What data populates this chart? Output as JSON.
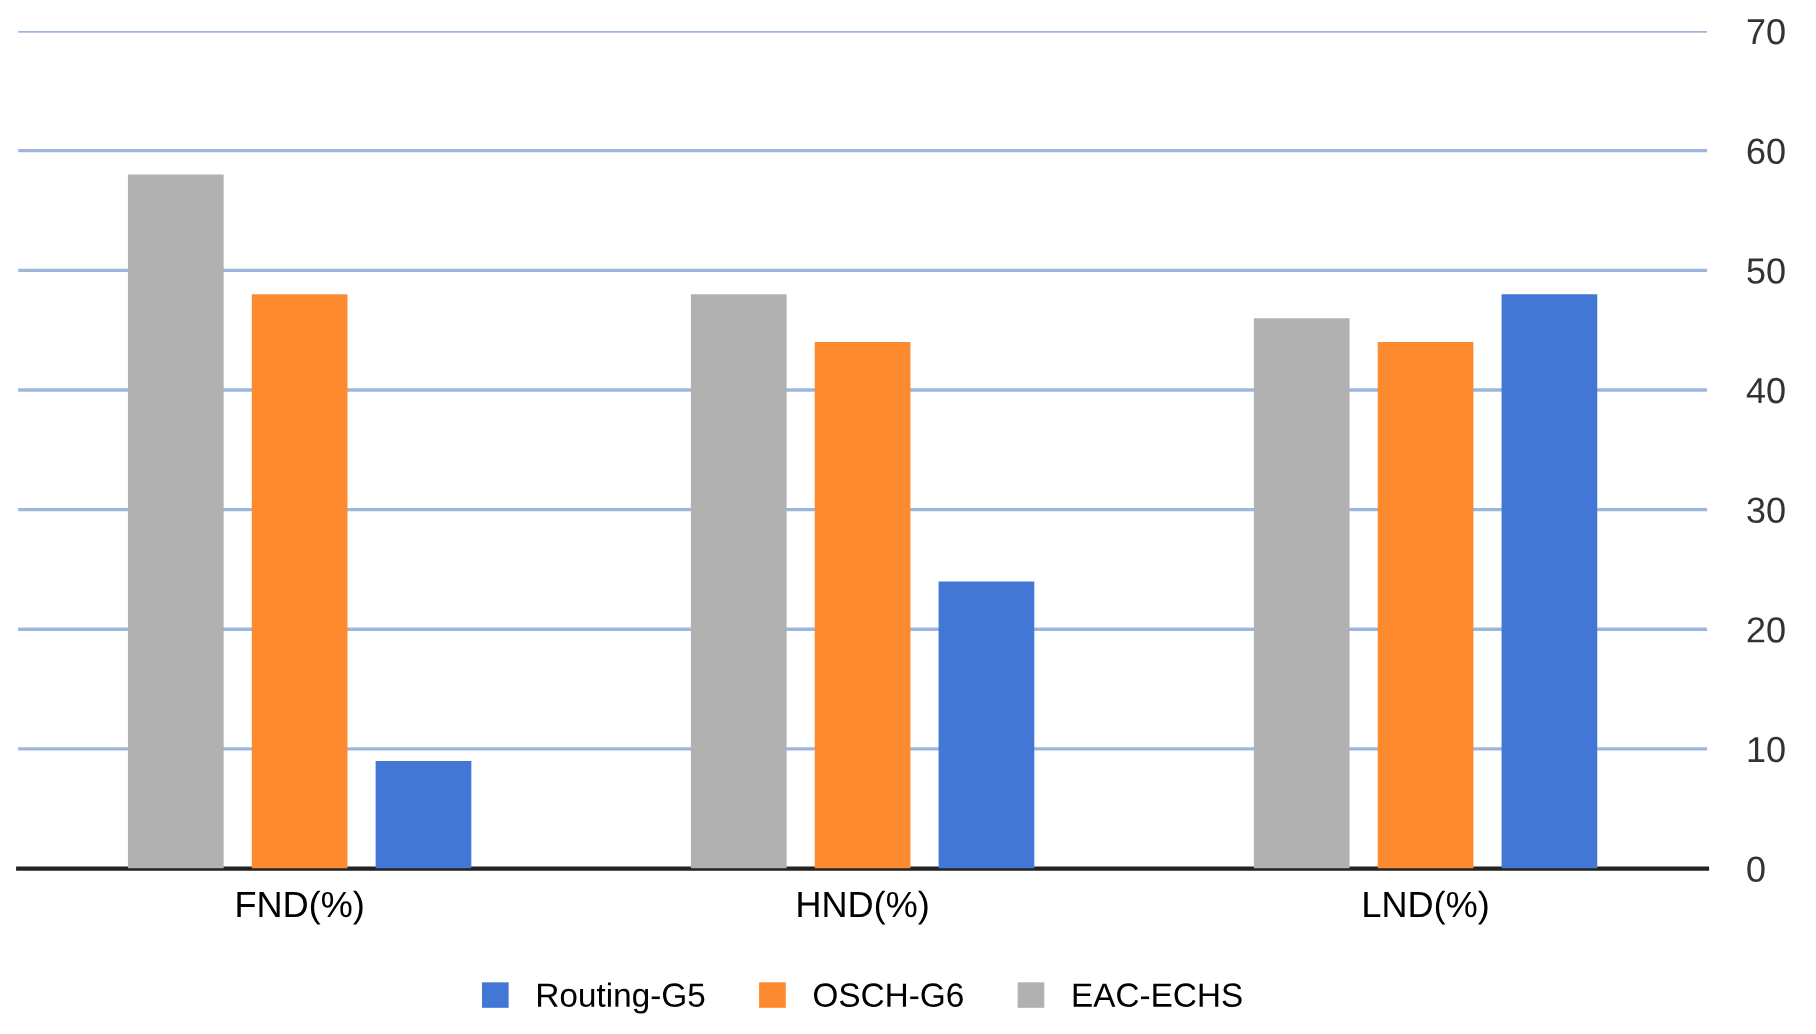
{
  "chart_data": {
    "type": "bar",
    "categories": [
      "FND(%)",
      "HND(%)",
      "LND(%)"
    ],
    "series": [
      {
        "name": "Routing-G5",
        "color": "#4377d6",
        "values": [
          9,
          24,
          48
        ]
      },
      {
        "name": "OSCH-G6",
        "color": "#fd8a2f",
        "values": [
          48,
          44,
          44
        ]
      },
      {
        "name": "EAC-ECHS",
        "color": "#b1b1b1",
        "values": [
          58,
          48,
          46
        ]
      }
    ],
    "ylim": [
      0,
      70
    ],
    "yticks": [
      0,
      10,
      20,
      30,
      40,
      50,
      60,
      70
    ],
    "grid": "y",
    "legend": "bottom"
  }
}
